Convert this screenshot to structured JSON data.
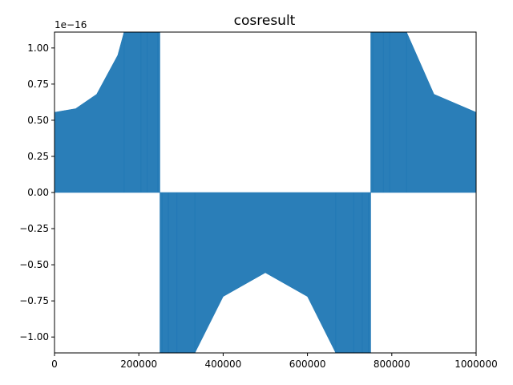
{
  "chart_data": {
    "type": "scatter",
    "title": "cosresult",
    "xlabel": "",
    "ylabel": "",
    "y_offset_label": "1e−16",
    "xlim": [
      0,
      1000000
    ],
    "ylim": [
      -1.11,
      1.11
    ],
    "x_ticks": [
      0,
      200000,
      400000,
      600000,
      800000,
      1000000
    ],
    "x_tick_labels": [
      "0",
      "200000",
      "400000",
      "600000",
      "800000",
      "1000000"
    ],
    "y_ticks": [
      -1.0,
      -0.75,
      -0.5,
      -0.25,
      0.0,
      0.25,
      0.5,
      0.75,
      1.0
    ],
    "y_tick_labels": [
      "−1.00",
      "−0.75",
      "−0.50",
      "−0.25",
      "0.00",
      "0.25",
      "0.50",
      "0.75",
      "1.00"
    ],
    "grid": false,
    "series": [
      {
        "color": "#1f77b4",
        "description_points": {
          "x": [
            0,
            50000,
            100000,
            150000,
            165000,
            200000,
            250000,
            250001,
            333000,
            400000,
            500000,
            600000,
            667000,
            750000,
            750001,
            800000,
            835000,
            900000,
            1000000
          ],
          "y_envelope": [
            0.555,
            0.58,
            0.68,
            0.95,
            1.11,
            1.11,
            1.11,
            -1.11,
            -1.11,
            -0.72,
            -0.555,
            -0.72,
            -1.11,
            -1.11,
            1.11,
            1.11,
            1.11,
            0.68,
            0.555
          ]
        }
      }
    ]
  }
}
